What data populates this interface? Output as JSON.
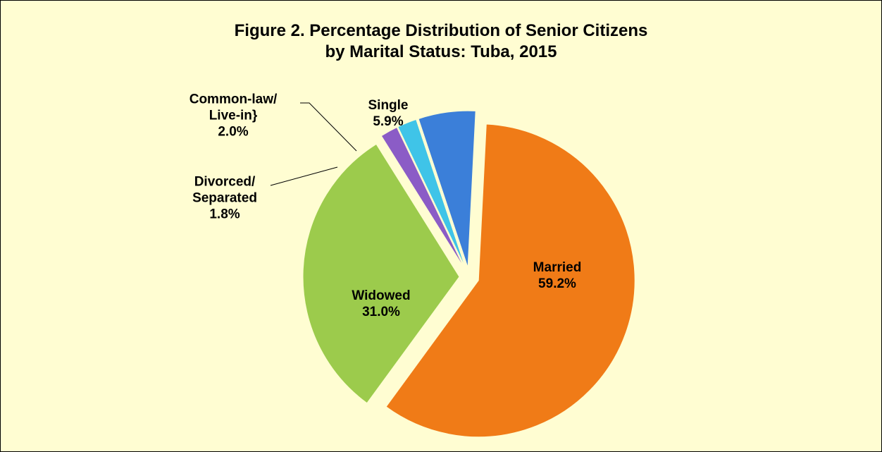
{
  "chart_data": {
    "type": "pie",
    "title": "Figure 2. Percentage Distribution of Senior Citizens\nby Marital Status: Tuba,  2015",
    "categories": [
      "Married",
      "Widowed",
      "Divorced/\nSeparated",
      "Common-law/\nLive-in}",
      "Single"
    ],
    "values": [
      59.2,
      31.0,
      1.8,
      2.0,
      5.9
    ],
    "value_labels": [
      "59.2%",
      "31.0%",
      "1.8%",
      "2.0%",
      "5.9%"
    ],
    "colors": [
      "#f07b17",
      "#9ccb4c",
      "#8b5cc6",
      "#3fc4e8",
      "#3b7fd9"
    ]
  }
}
